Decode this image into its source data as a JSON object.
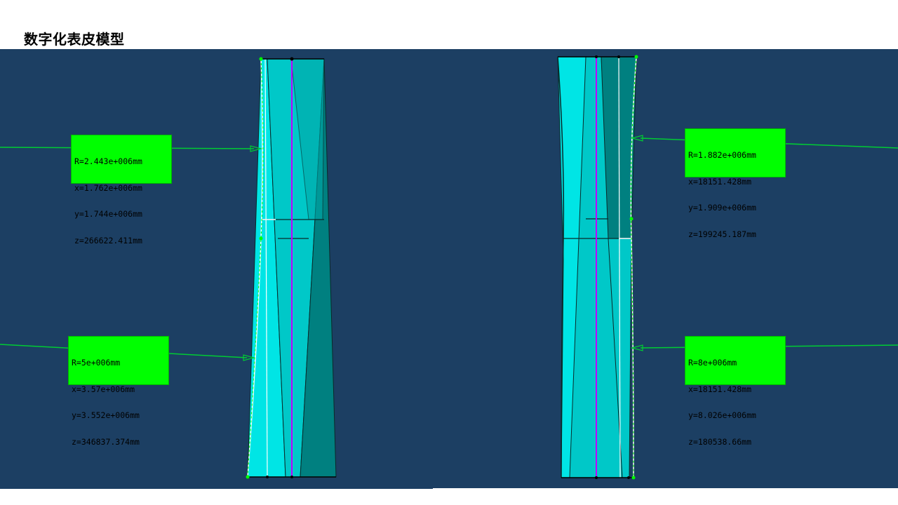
{
  "page": {
    "title": "数字化表皮模型"
  },
  "colors": {
    "viewport_bg": "#1c3f63",
    "panel_cyan": "#00e5e5",
    "panel_mid": "#00c8c8",
    "panel_dark": "#008080",
    "axis_magenta": "#c000ff",
    "annotation_green": "#00ff00"
  },
  "left_view": {
    "annotations": [
      {
        "lines": [
          "R=2.443e+006mm",
          "x=1.762e+006mm",
          "y=1.744e+006mm",
          "z=266622.411mm"
        ]
      },
      {
        "lines": [
          "R=5e+006mm",
          "x=3.57e+006mm",
          "y=3.552e+006mm",
          "z=346837.374mm"
        ]
      }
    ]
  },
  "right_view": {
    "annotations": [
      {
        "lines": [
          "R=1.882e+006mm",
          "x=18151.428mm",
          "y=1.909e+006mm",
          "z=199245.187mm"
        ]
      },
      {
        "lines": [
          "R=8e+006mm",
          "x=18151.428mm",
          "y=8.026e+006mm",
          "z=180538.66mm"
        ]
      }
    ]
  }
}
